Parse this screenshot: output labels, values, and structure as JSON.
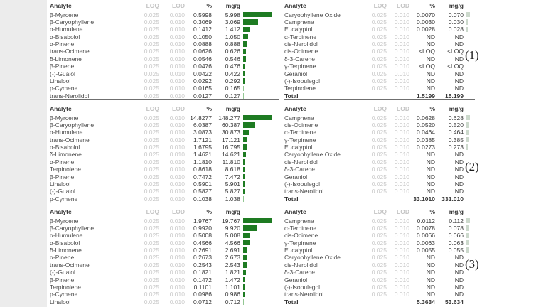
{
  "columns": [
    "Analyte",
    "LOQ",
    "LOD",
    "%",
    "mg/g"
  ],
  "colors": {
    "bar_green": "#1e7b22",
    "bar_green_light": "#93c793",
    "bar_green_faint": "#ccd9cc",
    "left_strip": "#ececec",
    "dark_text": "#383838",
    "light_gray_text": "#c8c8c8"
  },
  "panels": [
    {
      "marker": "(1)",
      "left_table": {
        "rows": [
          {
            "a": "β-Myrcene",
            "loq": "0.025",
            "lod": "0.010",
            "pct": "0.5998",
            "mgg": "5.998"
          },
          {
            "a": "β-Caryophyllene",
            "loq": "0.025",
            "lod": "0.010",
            "pct": "0.3069",
            "mgg": "3.069"
          },
          {
            "a": "α-Humulene",
            "loq": "0.025",
            "lod": "0.010",
            "pct": "0.1412",
            "mgg": "1.412"
          },
          {
            "a": "α-Bisabolol",
            "loq": "0.025",
            "lod": "0.010",
            "pct": "0.1050",
            "mgg": "1.050"
          },
          {
            "a": "α-Pinene",
            "loq": "0.025",
            "lod": "0.010",
            "pct": "0.0888",
            "mgg": "0.888"
          },
          {
            "a": "trans-Ocimene",
            "loq": "0.025",
            "lod": "0.010",
            "pct": "0.0626",
            "mgg": "0.626"
          },
          {
            "a": "δ-Limonene",
            "loq": "0.025",
            "lod": "0.010",
            "pct": "0.0546",
            "mgg": "0.546"
          },
          {
            "a": "β-Pinene",
            "loq": "0.025",
            "lod": "0.010",
            "pct": "0.0476",
            "mgg": "0.476"
          },
          {
            "a": "(-)-Guaiol",
            "loq": "0.025",
            "lod": "0.010",
            "pct": "0.0422",
            "mgg": "0.422"
          },
          {
            "a": "Linalool",
            "loq": "0.025",
            "lod": "0.010",
            "pct": "0.0292",
            "mgg": "0.292"
          },
          {
            "a": "p-Cymene",
            "loq": "0.025",
            "lod": "0.010",
            "pct": "0.0165",
            "mgg": "0.165"
          },
          {
            "a": "trans-Nerolidol",
            "loq": "0.025",
            "lod": "0.010",
            "pct": "0.0127",
            "mgg": "0.127"
          }
        ]
      },
      "right_table": {
        "rows": [
          {
            "a": "Caryophyllene Oxide",
            "loq": "0.025",
            "lod": "0.010",
            "pct": "0.0070",
            "mgg": "0.070"
          },
          {
            "a": "Camphene",
            "loq": "0.025",
            "lod": "0.010",
            "pct": "0.0030",
            "mgg": "0.030"
          },
          {
            "a": "Eucalyptol",
            "loq": "0.025",
            "lod": "0.010",
            "pct": "0.0028",
            "mgg": "0.028"
          },
          {
            "a": "α-Terpinene",
            "loq": "0.025",
            "lod": "0.010",
            "pct": "ND",
            "mgg": "ND"
          },
          {
            "a": "cis-Nerolidol",
            "loq": "0.025",
            "lod": "0.010",
            "pct": "ND",
            "mgg": "ND"
          },
          {
            "a": "cis-Ocimene",
            "loq": "0.025",
            "lod": "0.010",
            "pct": "<LOQ",
            "mgg": "<LOQ"
          },
          {
            "a": "δ-3-Carene",
            "loq": "0.025",
            "lod": "0.010",
            "pct": "ND",
            "mgg": "ND"
          },
          {
            "a": "γ-Terpinene",
            "loq": "0.025",
            "lod": "0.010",
            "pct": "<LOQ",
            "mgg": "<LOQ"
          },
          {
            "a": "Geraniol",
            "loq": "0.025",
            "lod": "0.010",
            "pct": "ND",
            "mgg": "ND"
          },
          {
            "a": "(-)-Isopulegol",
            "loq": "0.025",
            "lod": "0.010",
            "pct": "ND",
            "mgg": "ND"
          },
          {
            "a": "Terpinolene",
            "loq": "0.025",
            "lod": "0.010",
            "pct": "ND",
            "mgg": "ND"
          }
        ],
        "total": {
          "label": "Total",
          "pct": "1.5199",
          "mgg": "15.199"
        }
      }
    },
    {
      "marker": "(2)",
      "left_table": {
        "rows": [
          {
            "a": "β-Myrcene",
            "loq": "0.025",
            "lod": "0.010",
            "pct": "14.8277",
            "mgg": "148.277"
          },
          {
            "a": "β-Caryophyllene",
            "loq": "0.025",
            "lod": "0.010",
            "pct": "6.0387",
            "mgg": "60.387"
          },
          {
            "a": "α-Humulene",
            "loq": "0.025",
            "lod": "0.010",
            "pct": "3.0873",
            "mgg": "30.873"
          },
          {
            "a": "trans-Ocimene",
            "loq": "0.025",
            "lod": "0.010",
            "pct": "1.7121",
            "mgg": "17.121"
          },
          {
            "a": "α-Bisabolol",
            "loq": "0.025",
            "lod": "0.010",
            "pct": "1.6795",
            "mgg": "16.795"
          },
          {
            "a": "δ-Limonene",
            "loq": "0.025",
            "lod": "0.010",
            "pct": "1.4621",
            "mgg": "14.621"
          },
          {
            "a": "α-Pinene",
            "loq": "0.025",
            "lod": "0.010",
            "pct": "1.1810",
            "mgg": "11.810"
          },
          {
            "a": "Terpinolene",
            "loq": "0.025",
            "lod": "0.010",
            "pct": "0.8618",
            "mgg": "8.618"
          },
          {
            "a": "β-Pinene",
            "loq": "0.025",
            "lod": "0.010",
            "pct": "0.7472",
            "mgg": "7.472"
          },
          {
            "a": "Linalool",
            "loq": "0.025",
            "lod": "0.010",
            "pct": "0.5901",
            "mgg": "5.901"
          },
          {
            "a": "(-)-Guaiol",
            "loq": "0.025",
            "lod": "0.010",
            "pct": "0.5827",
            "mgg": "5.827"
          },
          {
            "a": "p-Cymene",
            "loq": "0.025",
            "lod": "0.010",
            "pct": "0.1038",
            "mgg": "1.038"
          }
        ]
      },
      "right_table": {
        "rows": [
          {
            "a": "Camphene",
            "loq": "0.025",
            "lod": "0.010",
            "pct": "0.0628",
            "mgg": "0.628"
          },
          {
            "a": "cis-Ocimene",
            "loq": "0.025",
            "lod": "0.010",
            "pct": "0.0520",
            "mgg": "0.520"
          },
          {
            "a": "α-Terpinene",
            "loq": "0.025",
            "lod": "0.010",
            "pct": "0.0464",
            "mgg": "0.464"
          },
          {
            "a": "γ-Terpinene",
            "loq": "0.025",
            "lod": "0.010",
            "pct": "0.0385",
            "mgg": "0.385"
          },
          {
            "a": "Eucalyptol",
            "loq": "0.025",
            "lod": "0.010",
            "pct": "0.0273",
            "mgg": "0.273"
          },
          {
            "a": "Caryophyllene Oxide",
            "loq": "0.025",
            "lod": "0.010",
            "pct": "ND",
            "mgg": "ND"
          },
          {
            "a": "cis-Nerolidol",
            "loq": "0.025",
            "lod": "0.010",
            "pct": "ND",
            "mgg": "ND"
          },
          {
            "a": "δ-3-Carene",
            "loq": "0.025",
            "lod": "0.010",
            "pct": "ND",
            "mgg": "ND"
          },
          {
            "a": "Geraniol",
            "loq": "0.025",
            "lod": "0.010",
            "pct": "ND",
            "mgg": "ND"
          },
          {
            "a": "(-)-Isopulegol",
            "loq": "0.025",
            "lod": "0.010",
            "pct": "ND",
            "mgg": "ND"
          },
          {
            "a": "trans-Nerolidol",
            "loq": "0.025",
            "lod": "0.010",
            "pct": "ND",
            "mgg": "ND"
          }
        ],
        "total": {
          "label": "Total",
          "pct": "33.1010",
          "mgg": "331.010"
        }
      }
    },
    {
      "marker": "(3)",
      "left_table": {
        "rows": [
          {
            "a": "β-Myrcene",
            "loq": "0.025",
            "lod": "0.010",
            "pct": "1.9767",
            "mgg": "19.767"
          },
          {
            "a": "β-Caryophyllene",
            "loq": "0.025",
            "lod": "0.010",
            "pct": "0.9920",
            "mgg": "9.920"
          },
          {
            "a": "α-Humulene",
            "loq": "0.025",
            "lod": "0.010",
            "pct": "0.5008",
            "mgg": "5.008"
          },
          {
            "a": "α-Bisabolol",
            "loq": "0.025",
            "lod": "0.010",
            "pct": "0.4566",
            "mgg": "4.566"
          },
          {
            "a": "δ-Limonene",
            "loq": "0.025",
            "lod": "0.010",
            "pct": "0.2691",
            "mgg": "2.691"
          },
          {
            "a": "α-Pinene",
            "loq": "0.025",
            "lod": "0.010",
            "pct": "0.2673",
            "mgg": "2.673"
          },
          {
            "a": "trans-Ocimene",
            "loq": "0.025",
            "lod": "0.010",
            "pct": "0.2543",
            "mgg": "2.543"
          },
          {
            "a": "(-)-Guaiol",
            "loq": "0.025",
            "lod": "0.010",
            "pct": "0.1821",
            "mgg": "1.821"
          },
          {
            "a": "β-Pinene",
            "loq": "0.025",
            "lod": "0.010",
            "pct": "0.1472",
            "mgg": "1.472"
          },
          {
            "a": "Terpinolene",
            "loq": "0.025",
            "lod": "0.010",
            "pct": "0.1101",
            "mgg": "1.101"
          },
          {
            "a": "p-Cymene",
            "loq": "0.025",
            "lod": "0.010",
            "pct": "0.0986",
            "mgg": "0.986"
          },
          {
            "a": "Linalool",
            "loq": "0.025",
            "lod": "0.010",
            "pct": "0.0712",
            "mgg": "0.712"
          }
        ]
      },
      "right_table": {
        "rows": [
          {
            "a": "Camphene",
            "loq": "0.025",
            "lod": "0.010",
            "pct": "0.0112",
            "mgg": "0.112"
          },
          {
            "a": "α-Terpinene",
            "loq": "0.025",
            "lod": "0.010",
            "pct": "0.0078",
            "mgg": "0.078"
          },
          {
            "a": "cis-Ocimene",
            "loq": "0.025",
            "lod": "0.010",
            "pct": "0.0066",
            "mgg": "0.066"
          },
          {
            "a": "γ-Terpinene",
            "loq": "0.025",
            "lod": "0.010",
            "pct": "0.0063",
            "mgg": "0.063"
          },
          {
            "a": "Eucalyptol",
            "loq": "0.025",
            "lod": "0.010",
            "pct": "0.0055",
            "mgg": "0.055"
          },
          {
            "a": "Caryophyllene Oxide",
            "loq": "0.025",
            "lod": "0.010",
            "pct": "ND",
            "mgg": "ND"
          },
          {
            "a": "cis-Nerolidol",
            "loq": "0.025",
            "lod": "0.010",
            "pct": "ND",
            "mgg": "ND"
          },
          {
            "a": "δ-3-Carene",
            "loq": "0.025",
            "lod": "0.010",
            "pct": "ND",
            "mgg": "ND"
          },
          {
            "a": "Geraniol",
            "loq": "0.025",
            "lod": "0.010",
            "pct": "ND",
            "mgg": "ND"
          },
          {
            "a": "(-)-Isopulegol",
            "loq": "0.025",
            "lod": "0.010",
            "pct": "ND",
            "mgg": "ND"
          },
          {
            "a": "trans-Nerolidol",
            "loq": "0.025",
            "lod": "0.010",
            "pct": "ND",
            "mgg": "ND"
          }
        ],
        "total": {
          "label": "Total",
          "pct": "5.3634",
          "mgg": "53.634"
        }
      }
    }
  ]
}
